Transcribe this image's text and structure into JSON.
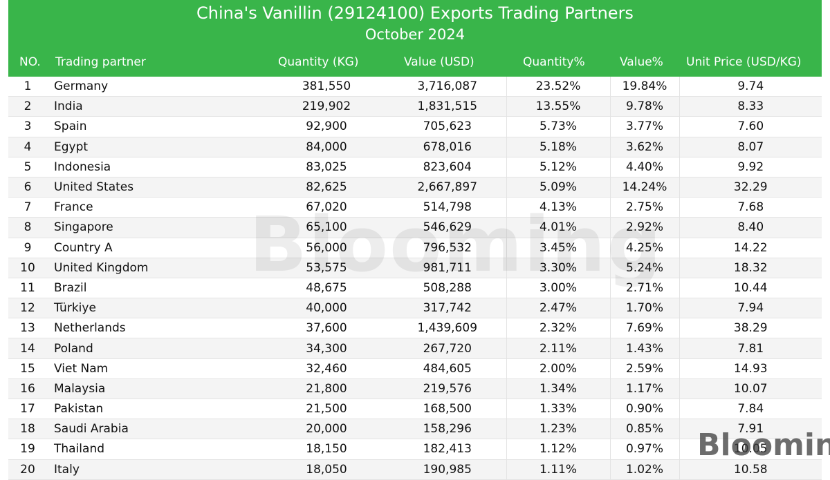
{
  "chart_data": {
    "type": "table",
    "title": "China's Vanillin (29124100) Exports Trading Partners",
    "subtitle": "October 2024",
    "columns": [
      "NO.",
      "Trading partner",
      "Quantity (KG)",
      "Value (USD)",
      "Quantity%",
      "Value%",
      "Unit Price (USD/KG)"
    ],
    "rows": [
      [
        "1",
        "Germany",
        "381,550",
        "3,716,087",
        "23.52%",
        "19.84%",
        "9.74"
      ],
      [
        "2",
        "India",
        "219,902",
        "1,831,515",
        "13.55%",
        "9.78%",
        "8.33"
      ],
      [
        "3",
        "Spain",
        "92,900",
        "705,623",
        "5.73%",
        "3.77%",
        "7.60"
      ],
      [
        "4",
        "Egypt",
        "84,000",
        "678,016",
        "5.18%",
        "3.62%",
        "8.07"
      ],
      [
        "5",
        "Indonesia",
        "83,025",
        "823,604",
        "5.12%",
        "4.40%",
        "9.92"
      ],
      [
        "6",
        "United States",
        "82,625",
        "2,667,897",
        "5.09%",
        "14.24%",
        "32.29"
      ],
      [
        "7",
        "France",
        "67,020",
        "514,798",
        "4.13%",
        "2.75%",
        "7.68"
      ],
      [
        "8",
        "Singapore",
        "65,100",
        "546,629",
        "4.01%",
        "2.92%",
        "8.40"
      ],
      [
        "9",
        "Country A",
        "56,000",
        "796,532",
        "3.45%",
        "4.25%",
        "14.22"
      ],
      [
        "10",
        "United Kingdom",
        "53,575",
        "981,711",
        "3.30%",
        "5.24%",
        "18.32"
      ],
      [
        "11",
        "Brazil",
        "48,675",
        "508,288",
        "3.00%",
        "2.71%",
        "10.44"
      ],
      [
        "12",
        "Türkiye",
        "40,000",
        "317,742",
        "2.47%",
        "1.70%",
        "7.94"
      ],
      [
        "13",
        "Netherlands",
        "37,600",
        "1,439,609",
        "2.32%",
        "7.69%",
        "38.29"
      ],
      [
        "14",
        "Poland",
        "34,300",
        "267,720",
        "2.11%",
        "1.43%",
        "7.81"
      ],
      [
        "15",
        "Viet Nam",
        "32,460",
        "484,605",
        "2.00%",
        "2.59%",
        "14.93"
      ],
      [
        "16",
        "Malaysia",
        "21,800",
        "219,576",
        "1.34%",
        "1.17%",
        "10.07"
      ],
      [
        "17",
        "Pakistan",
        "21,500",
        "168,500",
        "1.33%",
        "0.90%",
        "7.84"
      ],
      [
        "18",
        "Saudi Arabia",
        "20,000",
        "158,296",
        "1.23%",
        "0.85%",
        "7.91"
      ],
      [
        "19",
        "Thailand",
        "18,150",
        "182,413",
        "1.12%",
        "0.97%",
        "10.05"
      ],
      [
        "20",
        "Italy",
        "18,050",
        "190,985",
        "1.11%",
        "1.02%",
        "10.58"
      ]
    ]
  },
  "branding": {
    "watermark": "Blooming",
    "logo": "Blooming",
    "header_color": "#39b54a"
  }
}
